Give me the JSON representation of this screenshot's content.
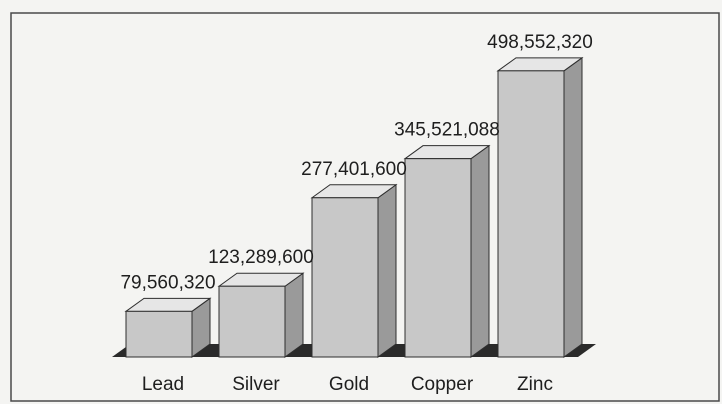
{
  "chart_data": {
    "type": "bar",
    "style": "3d",
    "categories": [
      "Lead",
      "Silver",
      "Gold",
      "Copper",
      "Zinc"
    ],
    "values": [
      79560320,
      123289600,
      277401600,
      345521088,
      498552320
    ],
    "data_labels": [
      "79,560,320",
      "123,289,600",
      "277,401,600",
      "345,521,088",
      "498,552,320"
    ],
    "ylim": [
      0,
      500000000
    ],
    "grid": false,
    "legend": "none",
    "colors": {
      "bar_front": "#c8c8c8",
      "bar_top": "#e6e6e6",
      "bar_side": "#9a9a9a",
      "bar_edge": "#2e2e2e",
      "floor": "#2a2a2a",
      "frame": "#4a4a4a",
      "background": "#f4f4f2"
    }
  }
}
